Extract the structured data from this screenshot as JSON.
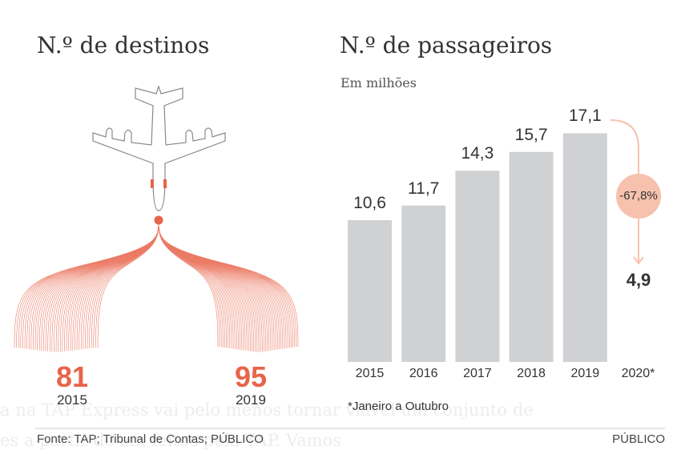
{
  "left": {
    "title": "N.º de destinos",
    "chart_data": {
      "type": "pictogram",
      "categories": [
        "2015",
        "2019"
      ],
      "values": [
        81,
        95
      ],
      "color": "#e8644a"
    }
  },
  "right": {
    "title": "N.º de passageiros",
    "subtitle": "Em milhões",
    "chart_data": {
      "type": "bar",
      "categories": [
        "2015",
        "2016",
        "2017",
        "2018",
        "2019",
        "2020*"
      ],
      "values": [
        10.6,
        11.7,
        14.3,
        15.7,
        17.1,
        4.9
      ],
      "labels": [
        "10,6",
        "11,7",
        "14,3",
        "15,7",
        "17,1",
        "4,9"
      ],
      "bar_color": "#d0d1d3",
      "change_label": "-67,8%",
      "change_color": "#f6c1ad",
      "ylim": [
        0,
        18
      ]
    },
    "note": "*Janeiro a Outubro"
  },
  "footer": {
    "source": "Fonte: TAP; Tribunal de Contas; PÚBLICO",
    "brand": "PÚBLICO"
  },
  "ghost_text": {
    "line1": "a na TAP Express vai pelo menos tornar viável um conjunto de",
    "line2": "es a partir de   em feitos pela TAP. Vamos"
  }
}
